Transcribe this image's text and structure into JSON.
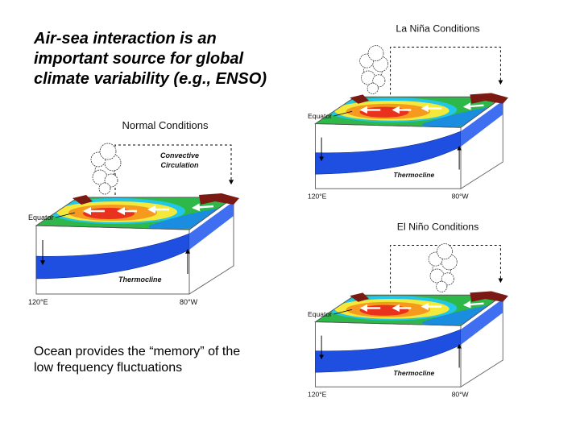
{
  "heading": "Air-sea interaction is an important source for global climate variability (e.g., ENSO)",
  "footnote": "Ocean provides the “memory” of the low frequency fluctuations",
  "panels": [
    {
      "title": "Normal Conditions",
      "circulation": [
        "Convective",
        "Circulation"
      ],
      "equator": "Equator",
      "thermocline": "Thermocline",
      "west": "120°E",
      "east": "80°W"
    },
    {
      "title": "La Niña Conditions",
      "equator": "Equator",
      "thermocline": "Thermocline",
      "west": "120°E",
      "east": "80°W"
    },
    {
      "title": "El Niño Conditions",
      "equator": "Equator",
      "thermocline": "Thermocline",
      "west": "120°E",
      "east": "80°W"
    }
  ]
}
